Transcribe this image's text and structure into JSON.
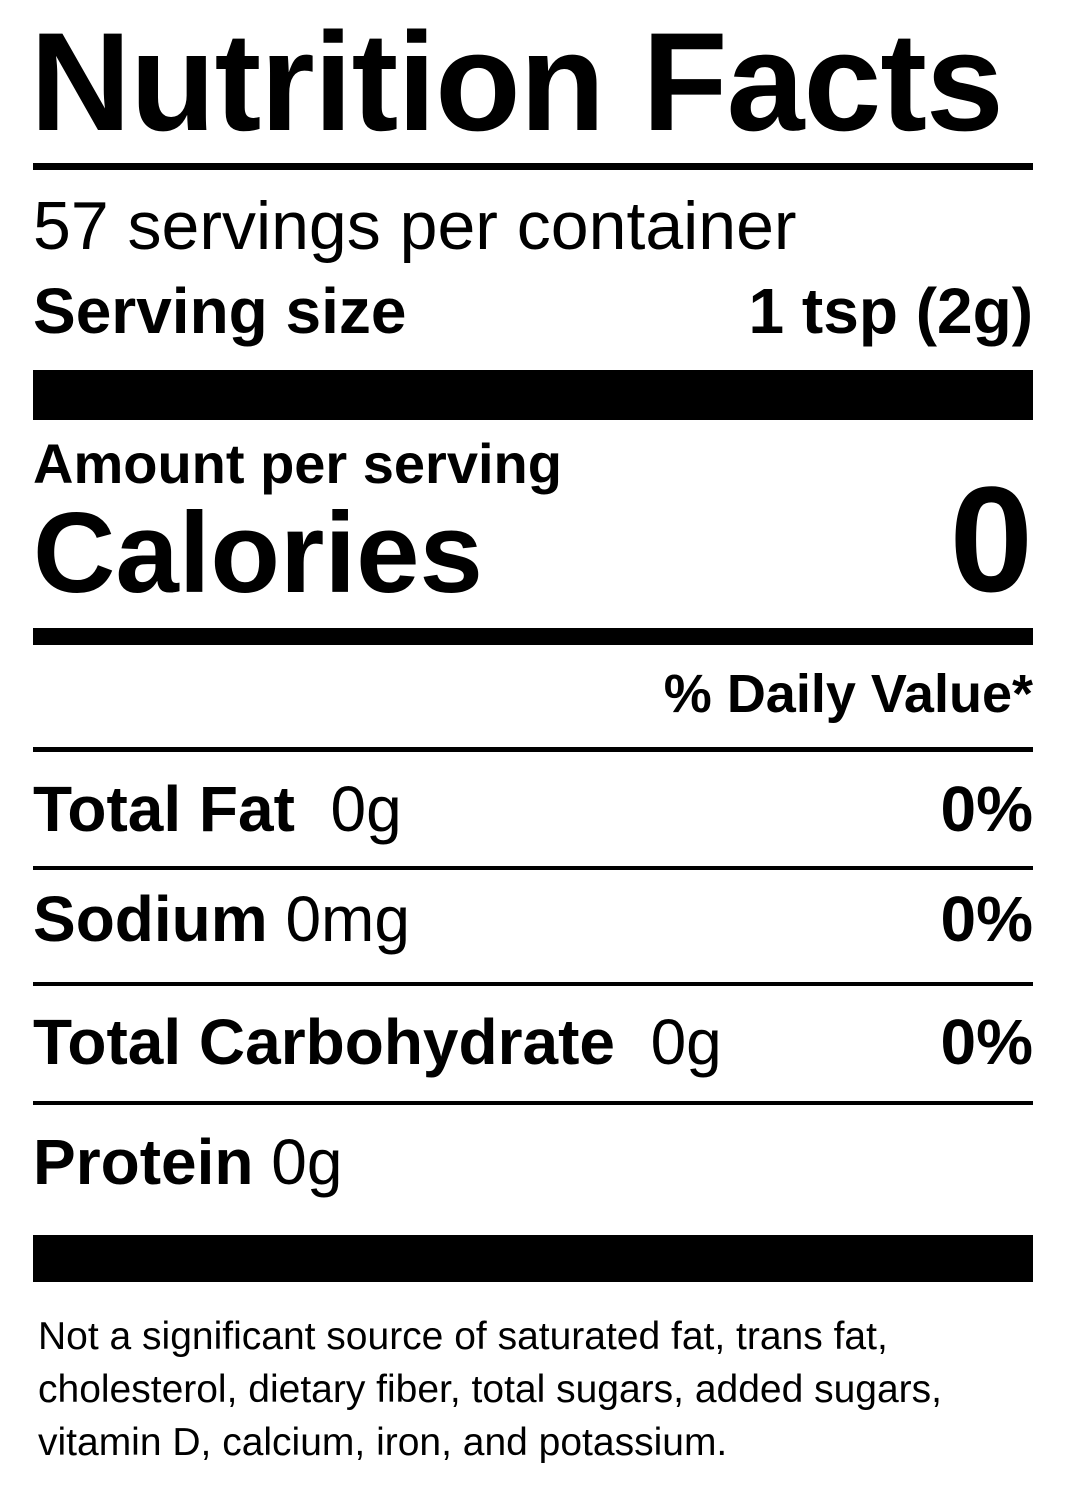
{
  "title": "Nutrition Facts",
  "servings_per_container": "57 servings per container",
  "serving_size": {
    "label": "Serving size",
    "value": "1 tsp (2g)"
  },
  "amount_per_serving": "Amount per serving",
  "calories": {
    "label": "Calories",
    "value": "0"
  },
  "daily_value_header": "% Daily Value*",
  "nutrients": [
    {
      "name": "Total Fat",
      "amount": "0g",
      "dv": "0%"
    },
    {
      "name": "Sodium",
      "amount": "0mg",
      "dv": "0%"
    },
    {
      "name": "Total Carbohydrate",
      "amount": "0g",
      "dv": "0%"
    },
    {
      "name": "Protein",
      "amount": "0g",
      "dv": ""
    }
  ],
  "footnote": "Not a significant source of saturated fat, trans fat, cholesterol, dietary fiber, total sugars, added sugars, vitamin D, calcium, iron, and potassium."
}
